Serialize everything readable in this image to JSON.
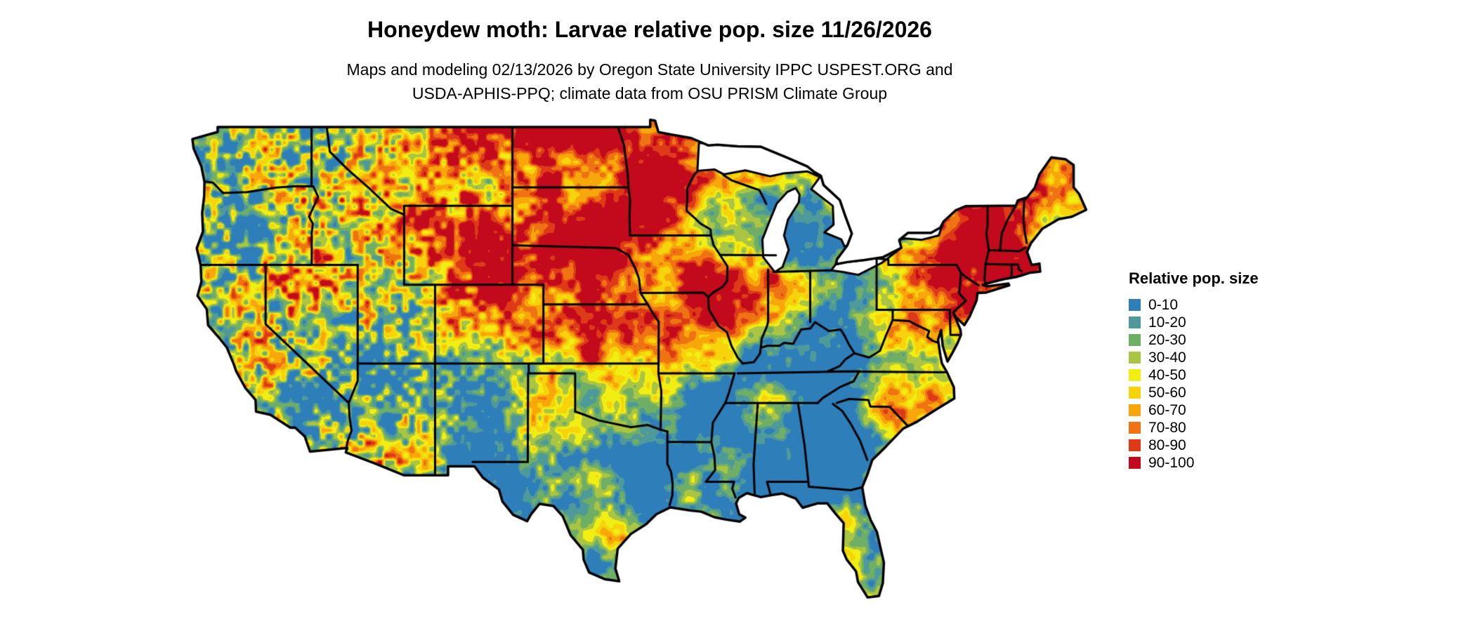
{
  "header": {
    "title": "Honeydew moth: Larvae relative pop. size 11/26/2026",
    "subtitle_line1": "Maps and modeling 02/13/2026 by Oregon State University IPPC USPEST.ORG and",
    "subtitle_line2": "USDA-APHIS-PPQ; climate data from OSU PRISM Climate Group"
  },
  "legend": {
    "title": "Relative pop. size",
    "items": [
      {
        "label": "0-10",
        "color": "#2E7EBA"
      },
      {
        "label": "10-20",
        "color": "#4E9A9B"
      },
      {
        "label": "20-30",
        "color": "#6FAF65"
      },
      {
        "label": "30-40",
        "color": "#AAC543"
      },
      {
        "label": "40-50",
        "color": "#F0EE12"
      },
      {
        "label": "50-60",
        "color": "#F6D30B"
      },
      {
        "label": "60-70",
        "color": "#F8A70B"
      },
      {
        "label": "70-80",
        "color": "#EF7312"
      },
      {
        "label": "80-90",
        "color": "#DE3A17"
      },
      {
        "label": "90-100",
        "color": "#C20A1C"
      }
    ]
  },
  "map": {
    "outline_color": "#000000",
    "water_color": "#FFFFFF"
  }
}
